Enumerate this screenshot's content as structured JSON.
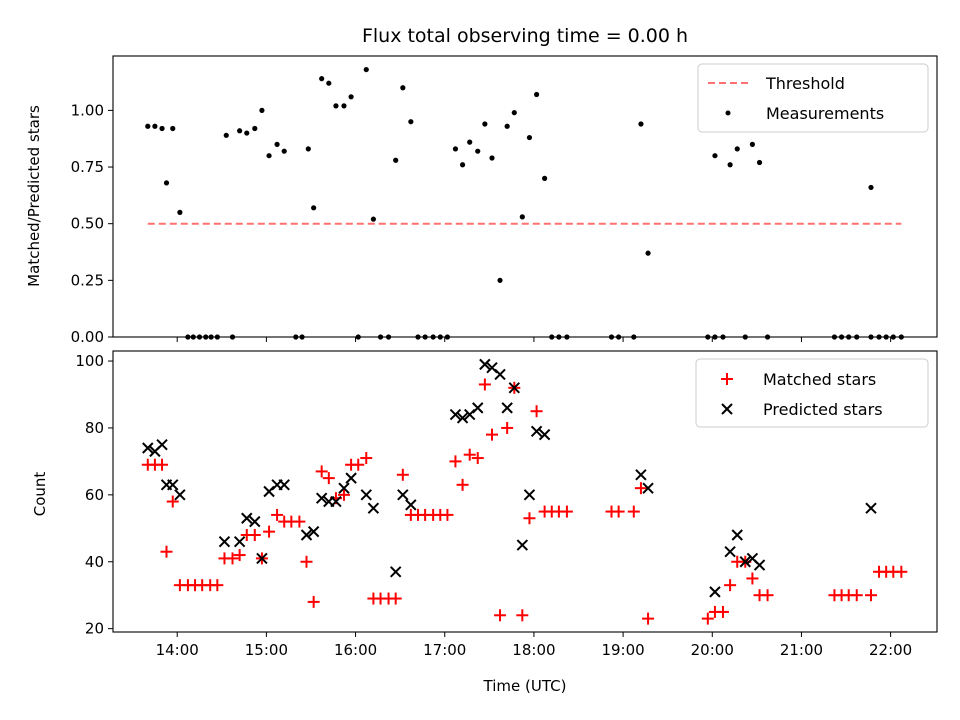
{
  "chart_data": [
    {
      "type": "scatter",
      "title": "Flux total observing time = 0.00 h",
      "xlabel": "",
      "ylabel": "Matched/Predicted stars",
      "ylim": [
        0,
        1.24
      ],
      "xlim": [
        13.28,
        22.52
      ],
      "yticks": [
        0.0,
        0.25,
        0.5,
        0.75,
        1.0
      ],
      "ytick_labels": [
        "0.00",
        "0.25",
        "0.50",
        "0.75",
        "1.00"
      ],
      "legend": {
        "position": "top-right",
        "entries": [
          "Threshold",
          "Measurements"
        ]
      },
      "threshold": {
        "name": "Threshold",
        "y": 0.5,
        "x_range": [
          13.67,
          22.12
        ],
        "color": "#ff7070"
      },
      "series": [
        {
          "name": "Measurements",
          "color": "#000000",
          "points": [
            [
              13.67,
              0.93
            ],
            [
              13.75,
              0.93
            ],
            [
              13.83,
              0.92
            ],
            [
              13.88,
              0.68
            ],
            [
              13.95,
              0.92
            ],
            [
              14.03,
              0.55
            ],
            [
              14.12,
              0.0
            ],
            [
              14.18,
              0.0
            ],
            [
              14.25,
              0.0
            ],
            [
              14.32,
              0.0
            ],
            [
              14.38,
              0.0
            ],
            [
              14.45,
              0.0
            ],
            [
              14.55,
              0.89
            ],
            [
              14.62,
              0.0
            ],
            [
              14.7,
              0.91
            ],
            [
              14.78,
              0.9
            ],
            [
              14.87,
              0.92
            ],
            [
              14.95,
              1.0
            ],
            [
              15.03,
              0.8
            ],
            [
              15.12,
              0.85
            ],
            [
              15.2,
              0.82
            ],
            [
              15.33,
              0.0
            ],
            [
              15.4,
              0.0
            ],
            [
              15.47,
              0.83
            ],
            [
              15.53,
              0.57
            ],
            [
              15.62,
              1.14
            ],
            [
              15.7,
              1.12
            ],
            [
              15.78,
              1.02
            ],
            [
              15.87,
              1.02
            ],
            [
              15.95,
              1.06
            ],
            [
              16.03,
              0.0
            ],
            [
              16.12,
              1.18
            ],
            [
              16.2,
              0.52
            ],
            [
              16.28,
              0.0
            ],
            [
              16.37,
              0.0
            ],
            [
              16.45,
              0.78
            ],
            [
              16.53,
              1.1
            ],
            [
              16.62,
              0.95
            ],
            [
              16.7,
              0.0
            ],
            [
              16.78,
              0.0
            ],
            [
              16.87,
              0.0
            ],
            [
              16.95,
              0.0
            ],
            [
              17.03,
              0.0
            ],
            [
              17.12,
              0.83
            ],
            [
              17.2,
              0.76
            ],
            [
              17.28,
              0.86
            ],
            [
              17.37,
              0.82
            ],
            [
              17.45,
              0.94
            ],
            [
              17.53,
              0.79
            ],
            [
              17.62,
              0.25
            ],
            [
              17.7,
              0.93
            ],
            [
              17.78,
              0.99
            ],
            [
              17.87,
              0.53
            ],
            [
              17.95,
              0.88
            ],
            [
              18.03,
              1.07
            ],
            [
              18.12,
              0.7
            ],
            [
              18.2,
              0.0
            ],
            [
              18.28,
              0.0
            ],
            [
              18.37,
              0.0
            ],
            [
              18.87,
              0.0
            ],
            [
              18.95,
              0.0
            ],
            [
              19.12,
              0.0
            ],
            [
              19.2,
              0.94
            ],
            [
              19.28,
              0.37
            ],
            [
              19.95,
              0.0
            ],
            [
              20.03,
              0.0
            ],
            [
              20.03,
              0.8
            ],
            [
              20.12,
              0.0
            ],
            [
              20.2,
              0.76
            ],
            [
              20.28,
              0.83
            ],
            [
              20.37,
              0.0
            ],
            [
              20.45,
              0.85
            ],
            [
              20.53,
              0.77
            ],
            [
              20.62,
              0.0
            ],
            [
              21.37,
              0.0
            ],
            [
              21.45,
              0.0
            ],
            [
              21.53,
              0.0
            ],
            [
              21.62,
              0.0
            ],
            [
              21.78,
              0.66
            ],
            [
              21.78,
              0.0
            ],
            [
              21.87,
              0.0
            ],
            [
              21.95,
              0.0
            ],
            [
              22.03,
              0.0
            ],
            [
              22.12,
              0.0
            ]
          ]
        }
      ]
    },
    {
      "type": "scatter",
      "title": "",
      "xlabel": "Time (UTC)",
      "ylabel": "Count",
      "ylim": [
        19,
        103
      ],
      "xlim": [
        13.28,
        22.52
      ],
      "yticks": [
        20,
        40,
        60,
        80,
        100
      ],
      "ytick_labels": [
        "20",
        "40",
        "60",
        "80",
        "100"
      ],
      "xticks": [
        14,
        15,
        16,
        17,
        18,
        19,
        20,
        21,
        22
      ],
      "xtick_labels": [
        "14:00",
        "15:00",
        "16:00",
        "17:00",
        "18:00",
        "19:00",
        "20:00",
        "21:00",
        "22:00"
      ],
      "legend": {
        "position": "top-right",
        "entries": [
          "Matched stars",
          "Predicted stars"
        ]
      },
      "series": [
        {
          "name": "Matched stars",
          "marker": "plus",
          "color": "#ff0000",
          "points": [
            [
              13.67,
              69
            ],
            [
              13.75,
              69
            ],
            [
              13.83,
              69
            ],
            [
              13.88,
              43
            ],
            [
              13.95,
              58
            ],
            [
              14.03,
              33
            ],
            [
              14.12,
              33
            ],
            [
              14.2,
              33
            ],
            [
              14.28,
              33
            ],
            [
              14.37,
              33
            ],
            [
              14.45,
              33
            ],
            [
              14.53,
              41
            ],
            [
              14.62,
              41
            ],
            [
              14.7,
              42
            ],
            [
              14.78,
              48
            ],
            [
              14.87,
              48
            ],
            [
              14.95,
              41
            ],
            [
              15.03,
              49
            ],
            [
              15.12,
              54
            ],
            [
              15.2,
              52
            ],
            [
              15.28,
              52
            ],
            [
              15.37,
              52
            ],
            [
              15.45,
              40
            ],
            [
              15.53,
              28
            ],
            [
              15.62,
              67
            ],
            [
              15.7,
              65
            ],
            [
              15.78,
              59
            ],
            [
              15.87,
              60
            ],
            [
              15.95,
              69
            ],
            [
              16.03,
              69
            ],
            [
              16.12,
              71
            ],
            [
              16.2,
              29
            ],
            [
              16.28,
              29
            ],
            [
              16.37,
              29
            ],
            [
              16.45,
              29
            ],
            [
              16.53,
              66
            ],
            [
              16.62,
              54
            ],
            [
              16.7,
              54
            ],
            [
              16.78,
              54
            ],
            [
              16.87,
              54
            ],
            [
              16.95,
              54
            ],
            [
              17.03,
              54
            ],
            [
              17.12,
              70
            ],
            [
              17.2,
              63
            ],
            [
              17.28,
              72
            ],
            [
              17.37,
              71
            ],
            [
              17.45,
              93
            ],
            [
              17.53,
              78
            ],
            [
              17.62,
              24
            ],
            [
              17.7,
              80
            ],
            [
              17.78,
              92
            ],
            [
              17.87,
              24
            ],
            [
              17.95,
              53
            ],
            [
              18.03,
              85
            ],
            [
              18.12,
              55
            ],
            [
              18.2,
              55
            ],
            [
              18.28,
              55
            ],
            [
              18.37,
              55
            ],
            [
              18.87,
              55
            ],
            [
              18.95,
              55
            ],
            [
              19.12,
              55
            ],
            [
              19.2,
              62
            ],
            [
              19.28,
              23
            ],
            [
              19.95,
              23
            ],
            [
              20.03,
              25
            ],
            [
              20.12,
              25
            ],
            [
              20.2,
              33
            ],
            [
              20.28,
              40
            ],
            [
              20.37,
              40
            ],
            [
              20.45,
              35
            ],
            [
              20.53,
              30
            ],
            [
              20.62,
              30
            ],
            [
              21.37,
              30
            ],
            [
              21.45,
              30
            ],
            [
              21.53,
              30
            ],
            [
              21.62,
              30
            ],
            [
              21.78,
              30
            ],
            [
              21.87,
              37
            ],
            [
              21.95,
              37
            ],
            [
              22.03,
              37
            ],
            [
              22.12,
              37
            ]
          ]
        },
        {
          "name": "Predicted stars",
          "marker": "x",
          "color": "#000000",
          "points": [
            [
              13.67,
              74
            ],
            [
              13.75,
              73
            ],
            [
              13.83,
              75
            ],
            [
              13.88,
              63
            ],
            [
              13.95,
              63
            ],
            [
              14.03,
              60
            ],
            [
              14.53,
              46
            ],
            [
              14.7,
              46
            ],
            [
              14.78,
              53
            ],
            [
              14.87,
              52
            ],
            [
              14.95,
              41
            ],
            [
              15.03,
              61
            ],
            [
              15.12,
              63
            ],
            [
              15.2,
              63
            ],
            [
              15.45,
              48
            ],
            [
              15.53,
              49
            ],
            [
              15.62,
              59
            ],
            [
              15.7,
              58
            ],
            [
              15.78,
              58
            ],
            [
              15.87,
              62
            ],
            [
              15.95,
              65
            ],
            [
              16.12,
              60
            ],
            [
              16.2,
              56
            ],
            [
              16.45,
              37
            ],
            [
              16.53,
              60
            ],
            [
              16.62,
              57
            ],
            [
              17.12,
              84
            ],
            [
              17.2,
              83
            ],
            [
              17.28,
              84
            ],
            [
              17.37,
              86
            ],
            [
              17.45,
              99
            ],
            [
              17.53,
              98
            ],
            [
              17.62,
              96
            ],
            [
              17.7,
              86
            ],
            [
              17.78,
              92
            ],
            [
              17.87,
              45
            ],
            [
              17.95,
              60
            ],
            [
              18.03,
              79
            ],
            [
              18.12,
              78
            ],
            [
              19.2,
              66
            ],
            [
              19.28,
              62
            ],
            [
              20.03,
              31
            ],
            [
              20.2,
              43
            ],
            [
              20.28,
              48
            ],
            [
              20.37,
              40
            ],
            [
              20.45,
              41
            ],
            [
              20.53,
              39
            ],
            [
              21.78,
              56
            ]
          ]
        }
      ]
    }
  ]
}
